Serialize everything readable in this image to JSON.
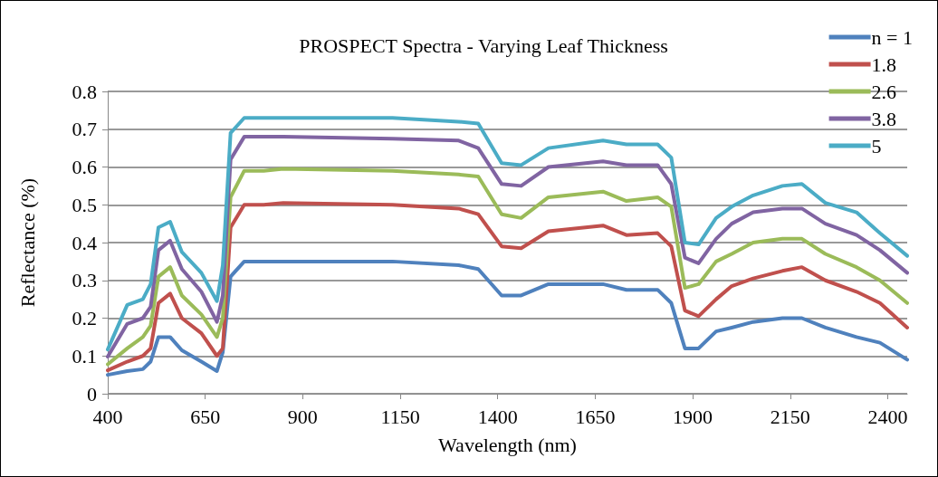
{
  "chart_data": {
    "type": "line",
    "title": "PROSPECT Spectra - Varying Leaf Thickness",
    "xlabel": "Wavelength (nm)",
    "ylabel": "Reflectance (%)",
    "x": [
      400,
      450,
      490,
      510,
      530,
      560,
      590,
      640,
      680,
      695,
      715,
      750,
      800,
      850,
      1130,
      1300,
      1350,
      1410,
      1460,
      1530,
      1670,
      1730,
      1810,
      1845,
      1880,
      1915,
      1960,
      2000,
      2055,
      2130,
      2180,
      2240,
      2320,
      2380,
      2450
    ],
    "series": [
      {
        "name": "n = 1",
        "color": "#4f81bd",
        "values": [
          0.05,
          0.06,
          0.065,
          0.085,
          0.15,
          0.15,
          0.115,
          0.085,
          0.06,
          0.11,
          0.31,
          0.35,
          0.35,
          0.35,
          0.35,
          0.34,
          0.33,
          0.26,
          0.26,
          0.29,
          0.29,
          0.275,
          0.275,
          0.24,
          0.12,
          0.12,
          0.165,
          0.175,
          0.19,
          0.2,
          0.2,
          0.175,
          0.15,
          0.135,
          0.09
        ]
      },
      {
        "name": "1.8",
        "color": "#c0504d",
        "values": [
          0.062,
          0.085,
          0.1,
          0.12,
          0.24,
          0.265,
          0.2,
          0.16,
          0.1,
          0.12,
          0.44,
          0.5,
          0.5,
          0.505,
          0.5,
          0.49,
          0.475,
          0.39,
          0.385,
          0.43,
          0.445,
          0.42,
          0.425,
          0.39,
          0.22,
          0.205,
          0.25,
          0.285,
          0.305,
          0.325,
          0.335,
          0.3,
          0.27,
          0.24,
          0.175
        ]
      },
      {
        "name": "2.6",
        "color": "#9bbb59",
        "values": [
          0.078,
          0.12,
          0.15,
          0.18,
          0.31,
          0.335,
          0.26,
          0.21,
          0.15,
          0.2,
          0.52,
          0.59,
          0.59,
          0.595,
          0.59,
          0.58,
          0.575,
          0.475,
          0.465,
          0.52,
          0.535,
          0.51,
          0.52,
          0.495,
          0.28,
          0.29,
          0.35,
          0.37,
          0.4,
          0.41,
          0.41,
          0.37,
          0.335,
          0.3,
          0.24
        ]
      },
      {
        "name": "3.8",
        "color": "#8064a2",
        "values": [
          0.098,
          0.185,
          0.2,
          0.23,
          0.38,
          0.405,
          0.33,
          0.27,
          0.19,
          0.26,
          0.62,
          0.68,
          0.68,
          0.68,
          0.675,
          0.67,
          0.65,
          0.555,
          0.55,
          0.6,
          0.615,
          0.605,
          0.605,
          0.555,
          0.36,
          0.345,
          0.41,
          0.45,
          0.48,
          0.49,
          0.49,
          0.45,
          0.42,
          0.38,
          0.32
        ]
      },
      {
        "name": "5",
        "color": "#4bacc6",
        "values": [
          0.117,
          0.235,
          0.25,
          0.29,
          0.44,
          0.455,
          0.375,
          0.32,
          0.245,
          0.34,
          0.69,
          0.73,
          0.73,
          0.73,
          0.73,
          0.72,
          0.715,
          0.61,
          0.605,
          0.65,
          0.67,
          0.66,
          0.66,
          0.625,
          0.4,
          0.395,
          0.465,
          0.495,
          0.525,
          0.55,
          0.555,
          0.505,
          0.48,
          0.425,
          0.365
        ]
      }
    ],
    "xlim": [
      400,
      2450
    ],
    "xticks": [
      400,
      650,
      900,
      1150,
      1400,
      1650,
      1900,
      2150,
      2400
    ],
    "ylim": [
      0,
      0.8
    ],
    "yticks": [
      0,
      0.1,
      0.2,
      0.3,
      0.4,
      0.5,
      0.6,
      0.7,
      0.8
    ],
    "grid": "y",
    "legend": "top right",
    "marker": "none",
    "line_style": "solid"
  }
}
